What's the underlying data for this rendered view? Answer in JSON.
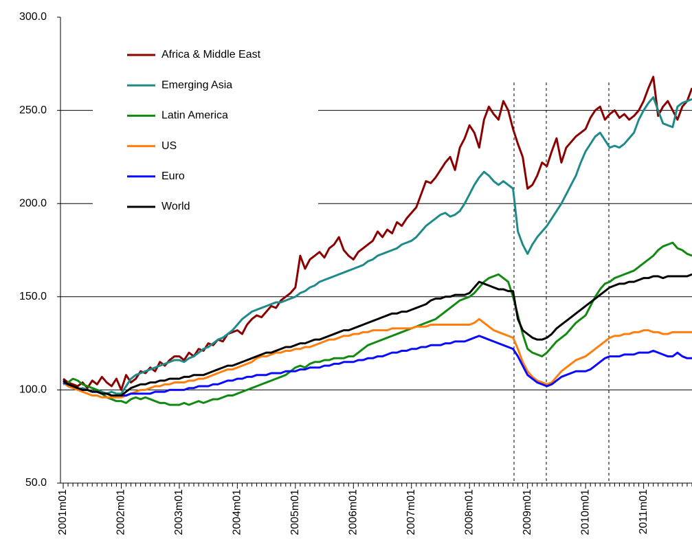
{
  "chart_data": {
    "type": "line",
    "categories": [
      "2001m01",
      null,
      null,
      null,
      null,
      null,
      null,
      null,
      null,
      null,
      null,
      null,
      "2002m01",
      null,
      null,
      null,
      null,
      null,
      null,
      null,
      null,
      null,
      null,
      null,
      "2003m01",
      null,
      null,
      null,
      null,
      null,
      null,
      null,
      null,
      null,
      null,
      null,
      "2004m01",
      null,
      null,
      null,
      null,
      null,
      null,
      null,
      null,
      null,
      null,
      null,
      "2005m01",
      null,
      null,
      null,
      null,
      null,
      null,
      null,
      null,
      null,
      null,
      null,
      "2006m01",
      null,
      null,
      null,
      null,
      null,
      null,
      null,
      null,
      null,
      null,
      null,
      "2007m01",
      null,
      null,
      null,
      null,
      null,
      null,
      null,
      null,
      null,
      null,
      null,
      "2008m01",
      null,
      null,
      null,
      null,
      null,
      null,
      null,
      null,
      null,
      null,
      null,
      "2009m01",
      null,
      null,
      null,
      null,
      null,
      null,
      null,
      null,
      null,
      null,
      null,
      "2010m01",
      null,
      null,
      null,
      null,
      null,
      null,
      null,
      null,
      null,
      null,
      null,
      "2011m01",
      null,
      null,
      null,
      null,
      null,
      null,
      null,
      null,
      null,
      null
    ],
    "series": [
      {
        "name": "Africa & Middle East",
        "color": "#8b0000",
        "values": [
          106,
          104,
          103,
          102,
          104,
          101,
          105,
          103,
          107,
          104,
          102,
          106,
          100,
          108,
          104,
          106,
          110,
          109,
          112,
          110,
          115,
          113,
          116,
          118,
          118,
          116,
          120,
          118,
          122,
          121,
          125,
          124,
          127,
          126,
          130,
          131,
          132,
          130,
          135,
          138,
          140,
          139,
          142,
          145,
          144,
          148,
          150,
          152,
          155,
          172,
          165,
          170,
          172,
          174,
          171,
          176,
          178,
          182,
          175,
          172,
          170,
          174,
          176,
          178,
          180,
          185,
          182,
          186,
          184,
          190,
          188,
          192,
          195,
          198,
          205,
          212,
          211,
          214,
          218,
          222,
          225,
          218,
          230,
          235,
          242,
          238,
          230,
          245,
          252,
          248,
          245,
          255,
          250,
          240,
          232,
          225,
          208,
          210,
          215,
          222,
          220,
          228,
          235,
          222,
          230,
          233,
          236,
          238,
          240,
          246,
          250,
          252,
          245,
          248,
          250,
          246,
          248,
          245,
          247,
          250,
          255,
          262,
          268,
          247,
          252,
          255,
          250,
          245,
          252,
          255,
          262
        ]
      },
      {
        "name": "Emerging Asia",
        "color": "#1f8a8a",
        "values": [
          104,
          102,
          101,
          100,
          101,
          100,
          99,
          100,
          99,
          98,
          99,
          98,
          98,
          102,
          106,
          108,
          109,
          110,
          111,
          112,
          113,
          114,
          115,
          116,
          116,
          115,
          117,
          118,
          120,
          122,
          123,
          125,
          127,
          128,
          130,
          132,
          135,
          138,
          140,
          142,
          143,
          144,
          145,
          146,
          147,
          147,
          148,
          149,
          150,
          152,
          153,
          155,
          156,
          158,
          159,
          160,
          161,
          162,
          163,
          164,
          165,
          166,
          167,
          169,
          170,
          172,
          173,
          174,
          175,
          176,
          178,
          179,
          180,
          182,
          185,
          188,
          190,
          192,
          194,
          195,
          193,
          194,
          196,
          200,
          205,
          210,
          214,
          217,
          215,
          212,
          210,
          212,
          210,
          208,
          185,
          178,
          173,
          178,
          182,
          185,
          188,
          192,
          196,
          200,
          205,
          210,
          215,
          222,
          228,
          232,
          236,
          238,
          234,
          230,
          231,
          230,
          232,
          235,
          238,
          245,
          250,
          254,
          257,
          250,
          243,
          242,
          241,
          252,
          254,
          255,
          256
        ]
      },
      {
        "name": "Latin America",
        "color": "#128a12",
        "values": [
          103,
          104,
          106,
          105,
          103,
          102,
          101,
          100,
          98,
          96,
          95,
          94,
          94,
          93,
          95,
          96,
          95,
          96,
          95,
          94,
          93,
          93,
          92,
          92,
          92,
          93,
          92,
          93,
          94,
          93,
          94,
          95,
          95,
          96,
          97,
          97,
          98,
          99,
          100,
          101,
          102,
          103,
          104,
          105,
          106,
          107,
          108,
          110,
          112,
          113,
          112,
          114,
          115,
          115,
          116,
          116,
          117,
          117,
          117,
          118,
          118,
          120,
          122,
          124,
          125,
          126,
          127,
          128,
          129,
          130,
          131,
          132,
          133,
          134,
          135,
          136,
          137,
          138,
          140,
          142,
          144,
          146,
          148,
          149,
          150,
          152,
          155,
          158,
          160,
          161,
          162,
          160,
          158,
          150,
          140,
          130,
          122,
          120,
          119,
          118,
          120,
          123,
          126,
          128,
          130,
          133,
          136,
          138,
          140,
          145,
          150,
          154,
          157,
          158,
          160,
          161,
          162,
          163,
          164,
          166,
          168,
          170,
          172,
          175,
          177,
          178,
          179,
          176,
          175,
          173,
          172
        ]
      },
      {
        "name": "US",
        "color": "#ff7f0e",
        "values": [
          104,
          102,
          101,
          100,
          99,
          98,
          97,
          97,
          96,
          96,
          96,
          96,
          96,
          97,
          98,
          99,
          100,
          100,
          101,
          102,
          102,
          103,
          103,
          104,
          104,
          104,
          105,
          105,
          106,
          106,
          107,
          108,
          109,
          110,
          111,
          111,
          112,
          113,
          114,
          115,
          117,
          118,
          118,
          119,
          120,
          120,
          121,
          121,
          122,
          122,
          123,
          123,
          124,
          125,
          126,
          127,
          127,
          128,
          129,
          129,
          130,
          130,
          131,
          131,
          132,
          132,
          132,
          132,
          133,
          133,
          133,
          133,
          133,
          134,
          134,
          134,
          135,
          135,
          135,
          135,
          135,
          135,
          135,
          135,
          135,
          136,
          138,
          136,
          134,
          132,
          131,
          130,
          129,
          128,
          122,
          115,
          110,
          107,
          105,
          104,
          103,
          104,
          107,
          110,
          112,
          114,
          116,
          117,
          118,
          120,
          122,
          124,
          126,
          128,
          129,
          129,
          130,
          130,
          131,
          131,
          132,
          132,
          131,
          131,
          130,
          130,
          131,
          131,
          131,
          131,
          131
        ]
      },
      {
        "name": "Euro",
        "color": "#0a0aff",
        "values": [
          104,
          103,
          102,
          101,
          100,
          100,
          99,
          99,
          98,
          98,
          97,
          97,
          97,
          97,
          98,
          98,
          98,
          98,
          98,
          99,
          99,
          99,
          100,
          100,
          100,
          100,
          101,
          101,
          102,
          102,
          102,
          103,
          103,
          104,
          105,
          105,
          106,
          106,
          107,
          107,
          108,
          108,
          108,
          109,
          109,
          109,
          110,
          110,
          110,
          111,
          111,
          112,
          112,
          112,
          113,
          113,
          114,
          114,
          115,
          115,
          115,
          116,
          116,
          117,
          117,
          118,
          118,
          119,
          120,
          120,
          121,
          121,
          122,
          122,
          123,
          123,
          124,
          124,
          124,
          125,
          125,
          126,
          126,
          126,
          127,
          128,
          129,
          128,
          127,
          126,
          125,
          124,
          123,
          122,
          118,
          113,
          108,
          106,
          104,
          103,
          102,
          103,
          105,
          107,
          108,
          109,
          110,
          110,
          110,
          111,
          113,
          115,
          117,
          118,
          118,
          118,
          119,
          119,
          119,
          120,
          120,
          120,
          121,
          120,
          119,
          118,
          118,
          120,
          118,
          117,
          117
        ]
      },
      {
        "name": "World",
        "color": "#000000",
        "values": [
          105,
          103,
          102,
          101,
          100,
          100,
          99,
          99,
          98,
          98,
          97,
          97,
          97,
          99,
          101,
          102,
          103,
          103,
          104,
          104,
          105,
          105,
          106,
          106,
          106,
          107,
          107,
          108,
          108,
          108,
          109,
          110,
          111,
          112,
          113,
          113,
          114,
          115,
          116,
          117,
          118,
          119,
          120,
          120,
          121,
          122,
          123,
          123,
          124,
          125,
          125,
          126,
          127,
          127,
          128,
          129,
          130,
          131,
          132,
          132,
          133,
          134,
          135,
          136,
          137,
          138,
          139,
          140,
          141,
          141,
          142,
          142,
          143,
          144,
          145,
          146,
          148,
          149,
          149,
          150,
          150,
          151,
          151,
          151,
          152,
          155,
          158,
          157,
          156,
          155,
          154,
          154,
          153,
          153,
          138,
          132,
          130,
          128,
          127,
          127,
          128,
          130,
          133,
          135,
          137,
          139,
          141,
          143,
          145,
          147,
          149,
          151,
          153,
          155,
          156,
          157,
          157,
          158,
          158,
          159,
          160,
          160,
          161,
          161,
          160,
          161,
          161,
          161,
          161,
          161,
          162
        ]
      }
    ],
    "ylim": [
      50,
      300
    ],
    "yticks": [
      {
        "value": 50,
        "label": "50.0"
      },
      {
        "value": 100,
        "label": "100.0"
      },
      {
        "value": 150,
        "label": "150.0"
      },
      {
        "value": 200,
        "label": "200.0"
      },
      {
        "value": 250,
        "label": "250.0"
      },
      {
        "value": 300,
        "label": "300.0"
      }
    ],
    "grid": true
  }
}
